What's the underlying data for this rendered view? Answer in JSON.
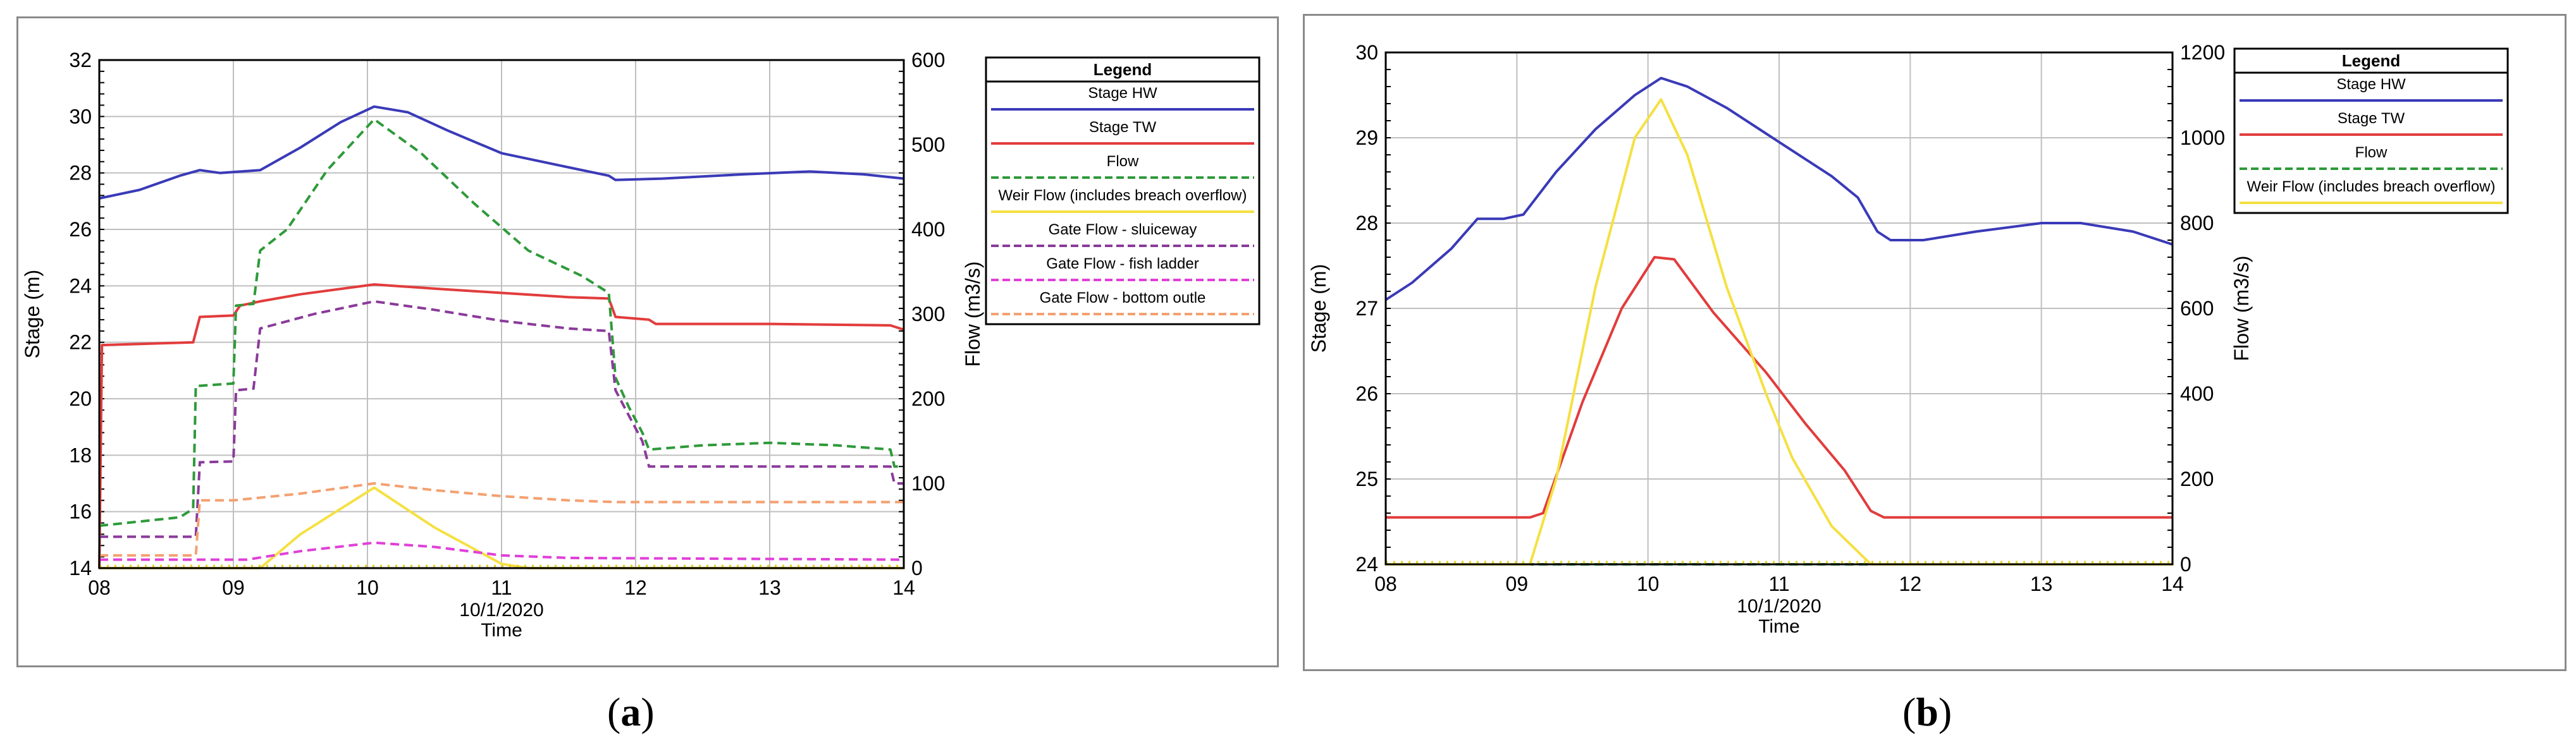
{
  "captions": {
    "a": "a",
    "b": "b"
  },
  "chart_data": [
    {
      "panel": "a",
      "type": "line",
      "xlabel": "Time",
      "date_label": "10/1/2020",
      "x_ticks": [
        "08",
        "09",
        "10",
        "11",
        "12",
        "13",
        "14"
      ],
      "xlim": [
        8,
        14
      ],
      "ylabel": "Stage (m)",
      "ylim": [
        14,
        32
      ],
      "y_ticks": [
        14,
        16,
        18,
        20,
        22,
        24,
        26,
        28,
        30,
        32
      ],
      "y2label": "Flow (m3/s)",
      "y2lim": [
        0,
        600
      ],
      "y2_ticks": [
        0,
        100,
        200,
        300,
        400,
        500,
        600
      ],
      "grid": true,
      "legend": {
        "title": "Legend",
        "placement": "right",
        "entries": [
          "Stage HW",
          "Stage TW",
          "Flow",
          "Weir Flow (includes breach overflow)",
          "Gate Flow - sluiceway",
          "Gate Flow - fish ladder",
          "Gate Flow - bottom outle"
        ]
      },
      "series": [
        {
          "name": "Stage HW",
          "axis": "left",
          "color": "#3a3ab8",
          "dash": "solid",
          "points": [
            [
              8.0,
              27.1
            ],
            [
              8.3,
              27.4
            ],
            [
              8.6,
              27.9
            ],
            [
              8.75,
              28.1
            ],
            [
              8.9,
              28.0
            ],
            [
              9.2,
              28.1
            ],
            [
              9.5,
              28.9
            ],
            [
              9.8,
              29.8
            ],
            [
              10.05,
              30.35
            ],
            [
              10.3,
              30.15
            ],
            [
              10.6,
              29.5
            ],
            [
              11.0,
              28.7
            ],
            [
              11.4,
              28.3
            ],
            [
              11.8,
              27.9
            ],
            [
              11.85,
              27.75
            ],
            [
              12.2,
              27.8
            ],
            [
              12.8,
              27.95
            ],
            [
              13.3,
              28.05
            ],
            [
              13.7,
              27.95
            ],
            [
              14.0,
              27.8
            ]
          ]
        },
        {
          "name": "Stage TW",
          "axis": "left",
          "color": "#e23c3c",
          "dash": "solid",
          "points": [
            [
              8.0,
              14.0
            ],
            [
              8.02,
              21.9
            ],
            [
              8.7,
              22.0
            ],
            [
              8.75,
              22.9
            ],
            [
              9.0,
              22.95
            ],
            [
              9.05,
              23.3
            ],
            [
              9.2,
              23.45
            ],
            [
              9.5,
              23.7
            ],
            [
              10.05,
              24.05
            ],
            [
              10.5,
              23.9
            ],
            [
              11.0,
              23.75
            ],
            [
              11.5,
              23.6
            ],
            [
              11.8,
              23.55
            ],
            [
              11.85,
              22.9
            ],
            [
              12.1,
              22.8
            ],
            [
              12.15,
              22.65
            ],
            [
              13.0,
              22.65
            ],
            [
              13.9,
              22.6
            ],
            [
              14.0,
              22.45
            ]
          ]
        },
        {
          "name": "Flow",
          "axis": "right",
          "color": "#2e9a3a",
          "dash": "dashed",
          "points": [
            [
              8.0,
              50
            ],
            [
              8.6,
              60
            ],
            [
              8.7,
              70
            ],
            [
              8.72,
              215
            ],
            [
              9.0,
              218
            ],
            [
              9.02,
              310
            ],
            [
              9.15,
              312
            ],
            [
              9.2,
              375
            ],
            [
              9.4,
              400
            ],
            [
              9.7,
              470
            ],
            [
              10.05,
              530
            ],
            [
              10.4,
              490
            ],
            [
              10.8,
              430
            ],
            [
              11.2,
              375
            ],
            [
              11.6,
              345
            ],
            [
              11.8,
              325
            ],
            [
              11.85,
              225
            ],
            [
              11.95,
              190
            ],
            [
              12.05,
              160
            ],
            [
              12.1,
              140
            ],
            [
              12.5,
              145
            ],
            [
              13.0,
              148
            ],
            [
              13.5,
              145
            ],
            [
              13.9,
              140
            ],
            [
              13.93,
              120
            ],
            [
              14.0,
              120
            ]
          ]
        },
        {
          "name": "Weir Flow (includes breach overflow)",
          "axis": "right",
          "color": "#f5e042",
          "dash": "solid",
          "points": [
            [
              8.0,
              0
            ],
            [
              9.2,
              0
            ],
            [
              9.5,
              40
            ],
            [
              10.05,
              95
            ],
            [
              10.5,
              48
            ],
            [
              11.0,
              5
            ],
            [
              11.2,
              0
            ],
            [
              14.0,
              0
            ]
          ]
        },
        {
          "name": "Gate Flow - sluiceway",
          "axis": "right",
          "color": "#8a3a9a",
          "dash": "dashed",
          "points": [
            [
              8.0,
              37
            ],
            [
              8.72,
              37
            ],
            [
              8.75,
              125
            ],
            [
              9.0,
              126
            ],
            [
              9.02,
              210
            ],
            [
              9.15,
              212
            ],
            [
              9.2,
              283
            ],
            [
              9.6,
              300
            ],
            [
              10.05,
              315
            ],
            [
              10.5,
              305
            ],
            [
              11.0,
              292
            ],
            [
              11.5,
              283
            ],
            [
              11.8,
              280
            ],
            [
              11.85,
              210
            ],
            [
              11.95,
              180
            ],
            [
              12.05,
              150
            ],
            [
              12.1,
              120
            ],
            [
              12.2,
              120
            ],
            [
              12.8,
              120
            ],
            [
              13.9,
              120
            ],
            [
              13.93,
              100
            ],
            [
              14.0,
              100
            ]
          ]
        },
        {
          "name": "Gate Flow - fish ladder",
          "axis": "right",
          "color": "#e040d8",
          "dash": "dashed",
          "points": [
            [
              8.0,
              10
            ],
            [
              8.75,
              10
            ],
            [
              9.1,
              10
            ],
            [
              9.5,
              20
            ],
            [
              10.05,
              30
            ],
            [
              10.5,
              25
            ],
            [
              11.0,
              15
            ],
            [
              11.5,
              12
            ],
            [
              14.0,
              10
            ]
          ]
        },
        {
          "name": "Gate Flow - bottom outle",
          "axis": "right",
          "color": "#f4a070",
          "dash": "dashed",
          "points": [
            [
              8.0,
              15
            ],
            [
              8.72,
              15
            ],
            [
              8.75,
              80
            ],
            [
              9.0,
              80
            ],
            [
              9.5,
              88
            ],
            [
              10.05,
              100
            ],
            [
              10.5,
              92
            ],
            [
              11.0,
              85
            ],
            [
              11.5,
              80
            ],
            [
              11.85,
              78
            ],
            [
              14.0,
              78
            ]
          ]
        }
      ]
    },
    {
      "panel": "b",
      "type": "line",
      "xlabel": "Time",
      "date_label": "10/1/2020",
      "x_ticks": [
        "08",
        "09",
        "10",
        "11",
        "12",
        "13",
        "14"
      ],
      "xlim": [
        8,
        14
      ],
      "ylabel": "Stage (m)",
      "ylim": [
        24,
        30
      ],
      "y_ticks": [
        24,
        25,
        26,
        27,
        28,
        29,
        30
      ],
      "y2label": "Flow (m3/s)",
      "y2lim": [
        0,
        1200
      ],
      "y2_ticks": [
        0,
        200,
        400,
        600,
        800,
        1000,
        1200
      ],
      "grid": true,
      "legend": {
        "title": "Legend",
        "placement": "right",
        "entries": [
          "Stage HW",
          "Stage TW",
          "Flow",
          "Weir Flow (includes breach overflow)"
        ]
      },
      "series": [
        {
          "name": "Stage HW",
          "axis": "left",
          "color": "#3a3ab8",
          "dash": "solid",
          "points": [
            [
              8.0,
              27.1
            ],
            [
              8.2,
              27.3
            ],
            [
              8.5,
              27.7
            ],
            [
              8.7,
              28.05
            ],
            [
              8.9,
              28.05
            ],
            [
              9.05,
              28.1
            ],
            [
              9.3,
              28.6
            ],
            [
              9.6,
              29.1
            ],
            [
              9.9,
              29.5
            ],
            [
              10.1,
              29.7
            ],
            [
              10.3,
              29.6
            ],
            [
              10.6,
              29.35
            ],
            [
              11.0,
              28.95
            ],
            [
              11.4,
              28.55
            ],
            [
              11.6,
              28.3
            ],
            [
              11.75,
              27.9
            ],
            [
              11.85,
              27.8
            ],
            [
              12.1,
              27.8
            ],
            [
              12.5,
              27.9
            ],
            [
              13.0,
              28.0
            ],
            [
              13.3,
              28.0
            ],
            [
              13.7,
              27.9
            ],
            [
              14.0,
              27.75
            ]
          ]
        },
        {
          "name": "Stage TW",
          "axis": "right",
          "color": "#e23c3c",
          "dash": "solid",
          "points": [
            [
              8.0,
              110
            ],
            [
              9.1,
              110
            ],
            [
              9.2,
              120
            ],
            [
              9.5,
              380
            ],
            [
              9.8,
              600
            ],
            [
              10.05,
              720
            ],
            [
              10.2,
              715
            ],
            [
              10.5,
              590
            ],
            [
              10.9,
              450
            ],
            [
              11.2,
              330
            ],
            [
              11.5,
              220
            ],
            [
              11.7,
              125
            ],
            [
              11.8,
              110
            ],
            [
              14.0,
              110
            ]
          ]
        },
        {
          "name": "Flow",
          "axis": "right",
          "color": "#2e9a3a",
          "dash": "dashed",
          "points": [
            [
              8.0,
              0
            ],
            [
              14.0,
              0
            ]
          ]
        },
        {
          "name": "Weir Flow (includes breach overflow)",
          "axis": "right",
          "color": "#f5e042",
          "dash": "solid",
          "points": [
            [
              8.0,
              0
            ],
            [
              9.1,
              0
            ],
            [
              9.3,
              200
            ],
            [
              9.6,
              650
            ],
            [
              9.9,
              1000
            ],
            [
              10.1,
              1090
            ],
            [
              10.3,
              960
            ],
            [
              10.6,
              650
            ],
            [
              10.9,
              400
            ],
            [
              11.1,
              250
            ],
            [
              11.4,
              90
            ],
            [
              11.7,
              0
            ],
            [
              14.0,
              0
            ]
          ]
        }
      ]
    }
  ]
}
